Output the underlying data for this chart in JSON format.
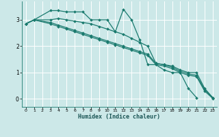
{
  "title": "",
  "xlabel": "Humidex (Indice chaleur)",
  "background_color": "#cce8e8",
  "grid_color": "#ffffff",
  "line_color": "#1a7a6e",
  "xlim": [
    -0.5,
    23.5
  ],
  "ylim": [
    -0.3,
    3.7
  ],
  "xticks": [
    0,
    1,
    2,
    3,
    4,
    5,
    6,
    7,
    8,
    9,
    10,
    11,
    12,
    13,
    14,
    15,
    16,
    17,
    18,
    19,
    20,
    21,
    22,
    23
  ],
  "yticks": [
    0,
    1,
    2,
    3
  ],
  "series": [
    {
      "x": [
        0,
        1,
        3,
        4,
        5,
        6,
        7,
        8,
        9,
        10,
        11,
        12,
        13,
        14,
        15,
        16,
        17,
        18,
        19,
        20,
        21
      ],
      "y": [
        2.85,
        3.0,
        3.35,
        3.35,
        3.3,
        3.3,
        3.3,
        3.0,
        3.0,
        3.0,
        2.55,
        3.4,
        3.0,
        2.25,
        1.3,
        1.3,
        1.1,
        1.0,
        1.0,
        0.4,
        0.05
      ],
      "marker": "D",
      "markersize": 2.0,
      "linewidth": 0.9
    },
    {
      "x": [
        0,
        1,
        3,
        4,
        5,
        6,
        7,
        8,
        9,
        10,
        11,
        12,
        13,
        14,
        15,
        16,
        17,
        18,
        19,
        20,
        21,
        22,
        23
      ],
      "y": [
        2.85,
        3.0,
        3.0,
        3.05,
        3.0,
        2.95,
        2.9,
        2.85,
        2.75,
        2.65,
        2.55,
        2.45,
        2.3,
        2.15,
        2.0,
        1.35,
        1.3,
        1.25,
        1.1,
        1.0,
        1.0,
        0.4,
        0.05
      ],
      "marker": "D",
      "markersize": 2.0,
      "linewidth": 0.9
    },
    {
      "x": [
        0,
        1,
        3,
        4,
        5,
        6,
        7,
        8,
        9,
        10,
        11,
        12,
        13,
        14,
        15,
        16,
        17,
        18,
        19,
        20,
        21,
        22,
        23
      ],
      "y": [
        2.85,
        3.0,
        2.9,
        2.8,
        2.7,
        2.6,
        2.5,
        2.4,
        2.3,
        2.2,
        2.1,
        2.0,
        1.9,
        1.8,
        1.7,
        1.35,
        1.3,
        1.2,
        1.05,
        0.95,
        0.9,
        0.35,
        0.05
      ],
      "marker": "D",
      "markersize": 2.0,
      "linewidth": 0.9
    },
    {
      "x": [
        0,
        1,
        3,
        4,
        5,
        6,
        7,
        8,
        9,
        10,
        11,
        12,
        13,
        14,
        15,
        16,
        17,
        18,
        19,
        20,
        21,
        22,
        23
      ],
      "y": [
        2.85,
        3.0,
        2.85,
        2.75,
        2.65,
        2.55,
        2.45,
        2.35,
        2.25,
        2.15,
        2.05,
        1.95,
        1.85,
        1.75,
        1.65,
        1.3,
        1.25,
        1.15,
        1.0,
        0.9,
        0.85,
        0.3,
        0.02
      ],
      "marker": "D",
      "markersize": 2.0,
      "linewidth": 0.9
    }
  ]
}
